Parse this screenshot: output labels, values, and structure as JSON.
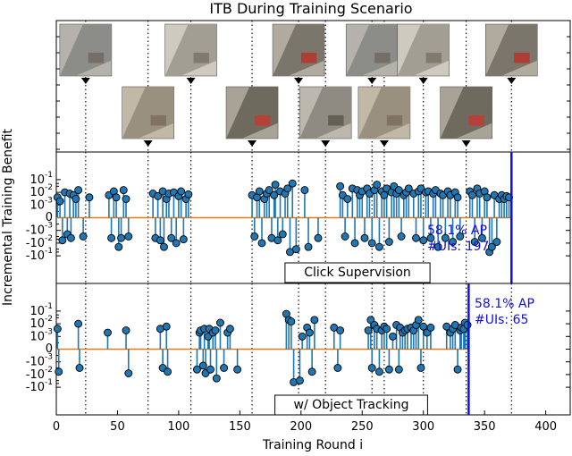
{
  "chart_data": {
    "type": "stem",
    "title": "ITB During Training Scenario",
    "xlabel": "Training Round i",
    "ylabel": "Incremental Training Benefit",
    "xlim": [
      0,
      420
    ],
    "x_ticks": [
      "0",
      "50",
      "100",
      "150",
      "200",
      "250",
      "300",
      "350",
      "400"
    ],
    "y_scale": "symlog",
    "y_ticks": [
      "10^-1",
      "10^-2",
      "10^-3",
      "0",
      "-10^-3",
      "-10^-2",
      "-10^-1"
    ],
    "scenario_change_rounds": [
      24,
      75,
      110,
      160,
      198,
      220,
      258,
      268,
      300,
      335,
      372
    ],
    "thumbnail_rounds_top": [
      24,
      110,
      198,
      258,
      300,
      372
    ],
    "thumbnail_rounds_bottom": [
      75,
      160,
      220,
      268,
      335
    ],
    "thumbnail_icons": [
      "aerial-road-photo",
      "aerial-person-photo",
      "aerial-road-photo",
      "aerial-car-photo",
      "aerial-car-photo",
      "aerial-person-photo",
      "aerial-field-photo",
      "aerial-road-photo",
      "aerial-car-photo",
      "aerial-car-photo",
      "aerial-field-photo"
    ],
    "panels": [
      {
        "name": "Click Supervision",
        "end_round": 372,
        "end_label_ap": "58.1% AP",
        "end_label_uis": "#UIs: 197",
        "points": [
          [
            1,
            0.004
          ],
          [
            3,
            0.002
          ],
          [
            5,
            -0.006
          ],
          [
            7,
            0.01
          ],
          [
            9,
            -0.002
          ],
          [
            11,
            0.008
          ],
          [
            12,
            -0.004
          ],
          [
            14,
            0.006
          ],
          [
            16,
            0.003
          ],
          [
            18,
            0.015
          ],
          [
            22,
            -0.003
          ],
          [
            27,
            0.004
          ],
          [
            43,
            0.006
          ],
          [
            45,
            -0.004
          ],
          [
            47,
            0.012
          ],
          [
            49,
            0.004
          ],
          [
            51,
            -0.02
          ],
          [
            53,
            -0.004
          ],
          [
            55,
            0.015
          ],
          [
            57,
            0.003
          ],
          [
            59,
            -0.003
          ],
          [
            79,
            0.008
          ],
          [
            81,
            -0.004
          ],
          [
            83,
            0.005
          ],
          [
            85,
            -0.006
          ],
          [
            87,
            0.012
          ],
          [
            88,
            -0.02
          ],
          [
            90,
            0.003
          ],
          [
            92,
            0.008
          ],
          [
            94,
            -0.004
          ],
          [
            96,
            0.01
          ],
          [
            98,
            -0.01
          ],
          [
            100,
            0.005
          ],
          [
            102,
            0.012
          ],
          [
            104,
            -0.005
          ],
          [
            106,
            0.003
          ],
          [
            108,
            0.007
          ],
          [
            160,
            0.006
          ],
          [
            162,
            -0.003
          ],
          [
            164,
            0.004
          ],
          [
            166,
            0.012
          ],
          [
            168,
            -0.01
          ],
          [
            170,
            0.003
          ],
          [
            172,
            0.008
          ],
          [
            174,
            0.015
          ],
          [
            176,
            -0.004
          ],
          [
            178,
            0.006
          ],
          [
            179,
            0.04
          ],
          [
            181,
            -0.006
          ],
          [
            183,
            0.012
          ],
          [
            185,
            -0.002
          ],
          [
            187,
            0.008
          ],
          [
            189,
            0.02
          ],
          [
            191,
            -0.05
          ],
          [
            193,
            0.05
          ],
          [
            196,
            -0.03
          ],
          [
            203,
            0.015
          ],
          [
            206,
            -0.02
          ],
          [
            214,
            -0.004
          ],
          [
            232,
            0.03
          ],
          [
            234,
            0.006
          ],
          [
            236,
            -0.003
          ],
          [
            238,
            0.003
          ],
          [
            242,
            0.02
          ],
          [
            244,
            -0.01
          ],
          [
            246,
            0.015
          ],
          [
            248,
            0.006
          ],
          [
            250,
            0.012
          ],
          [
            252,
            -0.004
          ],
          [
            254,
            0.02
          ],
          [
            256,
            0.008
          ],
          [
            258,
            -0.01
          ],
          [
            260,
            0.015
          ],
          [
            262,
            0.04
          ],
          [
            264,
            -0.02
          ],
          [
            266,
            0.012
          ],
          [
            268,
            0.006
          ],
          [
            270,
            0.02
          ],
          [
            272,
            -0.008
          ],
          [
            274,
            0.01
          ],
          [
            276,
            0.03
          ],
          [
            278,
            0.008
          ],
          [
            280,
            0.015
          ],
          [
            282,
            -0.003
          ],
          [
            284,
            0.006
          ],
          [
            286,
            0.01
          ],
          [
            288,
            0.02
          ],
          [
            292,
            0.008
          ],
          [
            294,
            -0.004
          ],
          [
            296,
            0.012
          ],
          [
            298,
            0.02
          ],
          [
            300,
            -0.006
          ],
          [
            302,
            0.01
          ],
          [
            304,
            0.012
          ],
          [
            306,
            -0.004
          ],
          [
            308,
            0.008
          ],
          [
            310,
            0.015
          ],
          [
            312,
            -0.02
          ],
          [
            314,
            0.008
          ],
          [
            316,
            0.006
          ],
          [
            318,
            -0.004
          ],
          [
            320,
            0.012
          ],
          [
            322,
            0.006
          ],
          [
            324,
            -0.008
          ],
          [
            326,
            0.01
          ],
          [
            328,
            0.004
          ],
          [
            330,
            -0.003
          ],
          [
            338,
            0.012
          ],
          [
            340,
            0.006
          ],
          [
            342,
            -0.008
          ],
          [
            344,
            0.02
          ],
          [
            346,
            0.008
          ],
          [
            348,
            -0.004
          ],
          [
            350,
            0.012
          ],
          [
            352,
            0.004
          ],
          [
            354,
            -0.05
          ],
          [
            356,
            -0.02
          ],
          [
            358,
            0.006
          ],
          [
            360,
            -0.008
          ],
          [
            362,
            0.003
          ],
          [
            364,
            0.006
          ],
          [
            366,
            0.003
          ],
          [
            368,
            0.005
          ],
          [
            370,
            0.004
          ]
        ]
      },
      {
        "name": "w/ Object Tracking",
        "end_round": 337,
        "end_label_ap": "58.1% AP",
        "end_label_uis": "#UIs: 65",
        "points": [
          [
            1,
            0.004
          ],
          [
            2,
            -0.006
          ],
          [
            18,
            0.01
          ],
          [
            19,
            -0.003
          ],
          [
            42,
            0.002
          ],
          [
            57,
            0.003
          ],
          [
            59,
            -0.008
          ],
          [
            85,
            0.004
          ],
          [
            87,
            -0.003
          ],
          [
            90,
            0.006
          ],
          [
            91,
            -0.006
          ],
          [
            115,
            -0.004
          ],
          [
            117,
            0.002
          ],
          [
            118,
            0.003
          ],
          [
            120,
            -0.002
          ],
          [
            121,
            0.004
          ],
          [
            122,
            -0.008
          ],
          [
            124,
            0.001
          ],
          [
            125,
            0.004
          ],
          [
            126,
            -0.004
          ],
          [
            128,
            0.002
          ],
          [
            130,
            0.003
          ],
          [
            131,
            -0.02
          ],
          [
            134,
            0.012
          ],
          [
            137,
            -0.003
          ],
          [
            140,
            0.002
          ],
          [
            142,
            0.004
          ],
          [
            148,
            -0.004
          ],
          [
            188,
            0.06
          ],
          [
            190,
            0.02
          ],
          [
            192,
            0.015
          ],
          [
            194,
            -0.04
          ],
          [
            199,
            -0.03
          ],
          [
            201,
            0.001
          ],
          [
            205,
            0.005
          ],
          [
            207,
            0.002
          ],
          [
            209,
            -0.006
          ],
          [
            211,
            0.02
          ],
          [
            227,
            0.005
          ],
          [
            230,
            -0.003
          ],
          [
            232,
            0.003
          ],
          [
            255,
            0.003
          ],
          [
            257,
            0.02
          ],
          [
            258,
            -0.003
          ],
          [
            260,
            0.008
          ],
          [
            262,
            0.004
          ],
          [
            264,
            -0.006
          ],
          [
            266,
            0.003
          ],
          [
            268,
            0.006
          ],
          [
            270,
            0.004
          ],
          [
            272,
            -0.004
          ],
          [
            275,
            0.001
          ],
          [
            278,
            0.008
          ],
          [
            280,
            -0.004
          ],
          [
            281,
            0.005
          ],
          [
            283,
            0.002
          ],
          [
            285,
            0.003
          ],
          [
            287,
            0.004
          ],
          [
            290,
            0.005
          ],
          [
            292,
            0.003
          ],
          [
            294,
            0.008
          ],
          [
            296,
            0.02
          ],
          [
            298,
            -0.003
          ],
          [
            300,
            0.006
          ],
          [
            303,
            0.002
          ],
          [
            306,
            0.005
          ],
          [
            319,
            0.006
          ],
          [
            322,
            0.002
          ],
          [
            324,
            0.004
          ],
          [
            326,
            0.008
          ],
          [
            328,
            -0.004
          ],
          [
            330,
            0.003
          ],
          [
            331,
            0.005
          ],
          [
            333,
            0.004
          ],
          [
            334,
            0.012
          ],
          [
            336,
            0.008
          ]
        ]
      }
    ]
  }
}
